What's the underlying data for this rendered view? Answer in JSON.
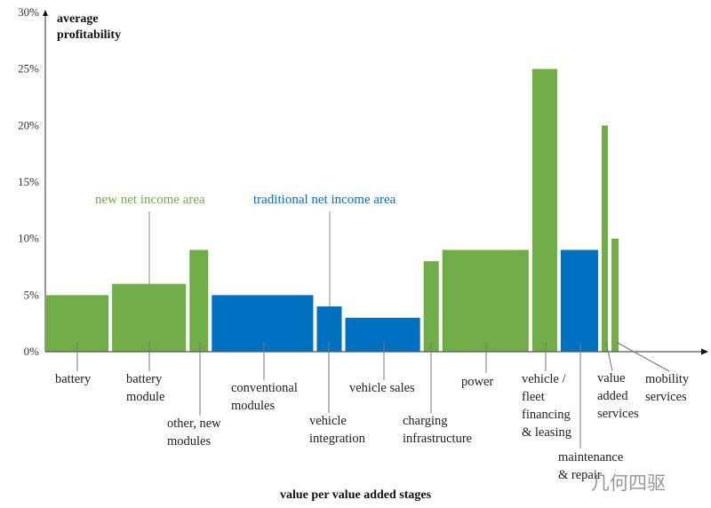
{
  "chart_data": {
    "type": "bar",
    "variant": "variable-width (marimekko-style)",
    "ylabel": "average profitability",
    "xlabel": "value per value added stages",
    "ylim": [
      0,
      30
    ],
    "y_ticks": [
      "0%",
      "5%",
      "10%",
      "15%",
      "20%",
      "25%",
      "30%"
    ],
    "grid": false,
    "colors": {
      "new": "#70ad47",
      "traditional": "#0070c0"
    },
    "annotations": [
      {
        "text": "new net income area",
        "group": "new"
      },
      {
        "text": "traditional net income area",
        "group": "traditional"
      }
    ],
    "bars": [
      {
        "label": [
          "battery"
        ],
        "value": 5,
        "relative_width": 70,
        "group": "new"
      },
      {
        "label": [
          "battery",
          "module"
        ],
        "value": 6,
        "relative_width": 83,
        "group": "new"
      },
      {
        "label": [
          "other, new",
          "modules"
        ],
        "value": 9,
        "relative_width": 21,
        "group": "new"
      },
      {
        "label": [
          "conventional",
          "modules"
        ],
        "value": 5,
        "relative_width": 114,
        "group": "traditional"
      },
      {
        "label": [
          "vehicle",
          "integration"
        ],
        "value": 4,
        "relative_width": 28,
        "group": "traditional"
      },
      {
        "label": [
          "vehicle sales"
        ],
        "value": 3,
        "relative_width": 84,
        "group": "traditional"
      },
      {
        "label": [
          "charging",
          "infrastructure"
        ],
        "value": 8,
        "relative_width": 17,
        "group": "new"
      },
      {
        "label": [
          "power"
        ],
        "value": 9,
        "relative_width": 97,
        "group": "new"
      },
      {
        "label": [
          "vehicle /",
          "fleet",
          "financing",
          "& leasing"
        ],
        "value": 25,
        "relative_width": 28,
        "group": "new"
      },
      {
        "label": [
          "maintenance",
          "& repair"
        ],
        "value": 9,
        "relative_width": 42,
        "group": "traditional"
      },
      {
        "label": [
          "value",
          "added",
          "services"
        ],
        "value": 20,
        "relative_width": 7,
        "group": "new"
      },
      {
        "label": [
          "mobility",
          "services"
        ],
        "value": 10,
        "relative_width": 8,
        "group": "new"
      }
    ]
  },
  "watermark": "几何四驱"
}
